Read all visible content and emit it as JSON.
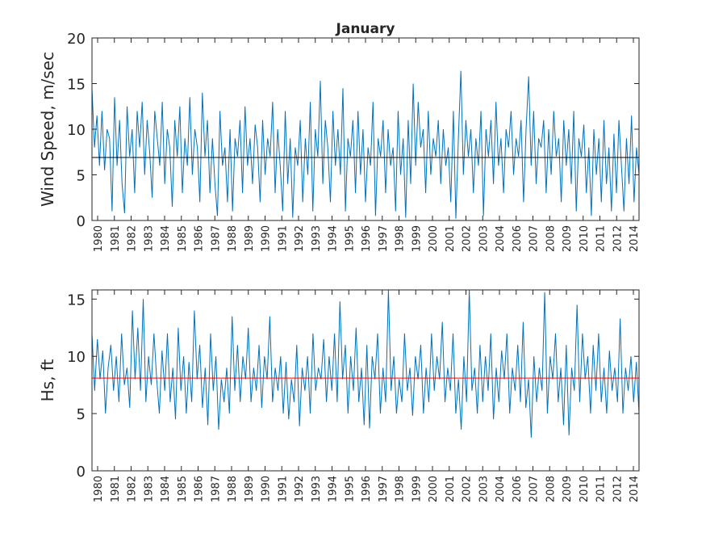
{
  "chart_data": [
    {
      "type": "line",
      "title": "January",
      "xlabel": "",
      "ylabel": "Wind Speed, m/sec",
      "ylim": [
        0,
        20
      ],
      "yticks": [
        "0",
        "5",
        "10",
        "15",
        "20"
      ],
      "xticks": [
        "1980",
        "1981",
        "1982",
        "1983",
        "1984",
        "1985",
        "1986",
        "1987",
        "1988",
        "1989",
        "1990",
        "1991",
        "1992",
        "1993",
        "1994",
        "1995",
        "1996",
        "1997",
        "1998",
        "1999",
        "2000",
        "2001",
        "2002",
        "2003",
        "2004",
        "2006",
        "2007",
        "2008",
        "2009",
        "2010",
        "2011",
        "2012",
        "2014"
      ],
      "grid": false,
      "series_color": "#0072BD",
      "mean_line": {
        "value": 6.9,
        "color": "#000000"
      },
      "values": [
        14.5,
        8,
        11.5,
        6,
        12,
        5.5,
        10,
        9,
        1,
        13.5,
        6,
        11,
        4,
        0.8,
        12.5,
        7,
        10,
        3,
        12,
        8,
        13,
        5,
        11,
        7.5,
        2.5,
        12,
        9,
        6,
        13,
        4,
        10,
        8,
        1.5,
        11,
        7,
        12.5,
        3,
        9,
        6,
        13.5,
        5,
        10,
        8,
        2,
        14,
        7,
        11,
        3,
        9,
        4,
        0.5,
        12,
        6,
        8,
        2,
        10,
        1,
        9,
        7,
        11,
        3,
        12.5,
        6,
        9,
        4,
        10.5,
        8,
        2,
        11,
        5,
        9,
        7,
        13,
        3,
        10,
        6,
        1,
        12,
        4,
        9,
        0.3,
        8,
        6,
        11,
        2,
        9,
        5,
        13,
        1,
        10,
        7,
        15.3,
        4,
        11,
        8,
        2,
        12,
        6,
        10,
        5,
        14.5,
        1,
        9,
        7,
        11,
        3,
        12,
        5,
        10,
        2,
        8,
        6,
        13,
        0.5,
        9,
        7,
        11,
        3,
        10,
        6,
        8,
        1,
        12,
        5,
        9,
        0.3,
        11,
        4,
        15,
        6,
        13,
        8,
        10,
        3,
        12,
        5,
        9,
        7,
        11,
        4,
        10,
        6,
        8,
        2,
        12,
        0.2,
        9,
        16.4,
        5,
        11,
        7,
        10,
        3,
        9,
        6,
        12,
        0.5,
        10,
        7,
        11,
        4,
        13,
        6,
        9,
        3,
        10,
        8,
        12,
        5,
        9,
        7,
        11,
        2,
        10,
        15.8,
        6,
        12,
        4,
        9,
        8,
        11,
        3,
        10,
        5,
        12,
        7,
        9,
        2,
        11,
        6,
        10,
        4,
        12,
        1,
        9,
        7,
        10.5,
        3,
        8,
        0.5,
        10,
        5,
        9,
        2,
        11,
        4,
        8,
        1,
        9.5,
        3,
        11,
        6,
        1,
        9,
        4,
        11.5,
        2,
        8,
        5
      ],
      "values_note": "downsampled"
    },
    {
      "type": "line",
      "title": "",
      "xlabel": "",
      "ylabel": "Hs, ft",
      "ylim": [
        0,
        15.8
      ],
      "yticks": [
        "0",
        "5",
        "10",
        "15"
      ],
      "xticks": [
        "1980",
        "1981",
        "1982",
        "1983",
        "1984",
        "1985",
        "1986",
        "1987",
        "1988",
        "1989",
        "1990",
        "1991",
        "1992",
        "1993",
        "1994",
        "1995",
        "1996",
        "1997",
        "1998",
        "1999",
        "2000",
        "2001",
        "2002",
        "2003",
        "2004",
        "2006",
        "2007",
        "2008",
        "2009",
        "2010",
        "2011",
        "2012",
        "2014"
      ],
      "grid": false,
      "series_color": "#0072BD",
      "mean_line": {
        "value": 8.1,
        "color": "#FF0000"
      },
      "values": [
        12,
        7,
        11.5,
        8,
        10.5,
        5,
        9,
        11,
        7,
        10,
        6,
        12,
        7.5,
        9,
        5.5,
        14,
        8,
        12.5,
        7,
        15,
        6,
        10,
        7.5,
        12,
        8,
        5,
        10.5,
        7,
        12,
        6,
        9,
        4.5,
        12.5,
        7,
        10,
        5,
        9.5,
        6,
        14,
        8,
        11,
        5.5,
        9,
        4,
        12,
        7,
        10,
        3.6,
        8,
        6,
        9,
        5,
        13.5,
        7,
        11,
        6,
        10,
        8,
        12.5,
        6,
        9,
        7,
        11,
        5.5,
        10,
        8,
        13.5,
        6,
        9,
        7,
        10,
        5,
        9.5,
        4.5,
        8,
        6,
        11,
        3.9,
        9,
        7,
        10,
        5,
        12,
        7,
        9,
        8,
        11.5,
        6,
        10,
        7,
        12,
        6,
        14.8,
        8,
        11,
        5,
        10,
        7,
        12.5,
        6,
        9,
        4,
        11,
        3.7,
        10,
        8,
        12,
        5,
        9,
        6,
        15.8,
        7,
        10,
        5,
        8,
        6,
        12,
        7,
        9,
        4.8,
        10,
        8,
        11,
        5,
        9,
        6,
        12,
        7,
        10,
        8,
        13,
        6,
        9,
        7,
        12,
        5,
        8,
        3.6,
        10,
        6,
        15.8,
        7,
        9,
        5,
        11,
        6,
        10,
        7,
        12,
        4.5,
        9,
        6,
        10.5,
        8,
        12,
        5,
        9,
        7,
        11,
        6,
        13,
        5.5,
        8,
        2.9,
        10,
        6,
        9,
        7,
        15.6,
        5,
        10,
        8,
        12,
        6,
        9,
        4,
        11,
        3.1,
        9,
        7,
        14.5,
        6,
        12,
        8,
        10,
        5,
        11,
        7,
        12,
        6,
        9,
        5,
        10.5,
        7,
        9,
        6,
        13.3,
        5,
        9,
        7,
        10,
        6,
        9.5,
        5
      ]
    }
  ]
}
